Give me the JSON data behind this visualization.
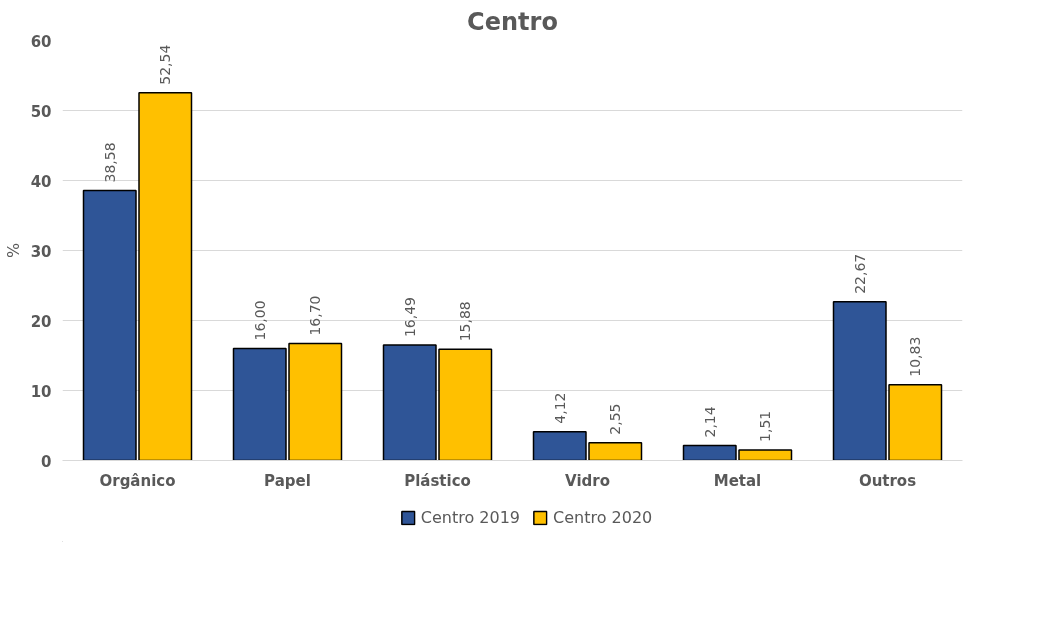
{
  "chart_data": {
    "type": "bar",
    "title": "Centro",
    "ylabel": "%",
    "categories": [
      "Orgânico",
      "Papel",
      "Plástico",
      "Vidro",
      "Metal",
      "Outros"
    ],
    "series": [
      {
        "name": "Centro 2019",
        "color": "#2f5597",
        "values": [
          38.58,
          16.0,
          16.49,
          4.12,
          2.14,
          22.67
        ],
        "value_labels": [
          "38,58",
          "16,00",
          "16,49",
          "4,12",
          "2,14",
          "22,67"
        ]
      },
      {
        "name": "Centro 2020",
        "color": "#ffc000",
        "values": [
          52.54,
          16.7,
          15.88,
          2.55,
          1.51,
          10.83
        ],
        "value_labels": [
          "52,54",
          "16,70",
          "15,88",
          "2,55",
          "1,51",
          "10,83"
        ]
      }
    ],
    "ylim": [
      0,
      60
    ],
    "yticks": [
      0,
      10,
      20,
      30,
      40,
      50,
      60
    ],
    "grid": "y",
    "legend": "bottom"
  }
}
